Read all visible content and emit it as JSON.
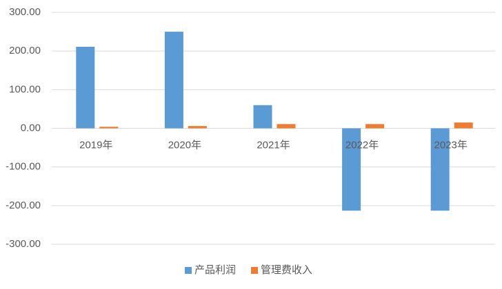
{
  "chart_data": {
    "type": "bar",
    "categories": [
      "2019年",
      "2020年",
      "2021年",
      "2022年",
      "2023年"
    ],
    "series": [
      {
        "name": "产品利润",
        "color": "#5b9bd5",
        "values": [
          211,
          250,
          60,
          -213,
          -213
        ]
      },
      {
        "name": "管理费收入",
        "color": "#ed7d31",
        "values": [
          4,
          6,
          11,
          11,
          15
        ]
      }
    ],
    "ylim": [
      -300,
      300
    ],
    "yticks": [
      {
        "value": -300,
        "label": "-300.00"
      },
      {
        "value": -200,
        "label": "-200.00"
      },
      {
        "value": -100,
        "label": "-100.00"
      },
      {
        "value": 0,
        "label": "0.00"
      },
      {
        "value": 100,
        "label": "100.00"
      },
      {
        "value": 200,
        "label": "200.00"
      },
      {
        "value": 300,
        "label": "300.00"
      }
    ],
    "grid": true,
    "legend": "bottom"
  }
}
